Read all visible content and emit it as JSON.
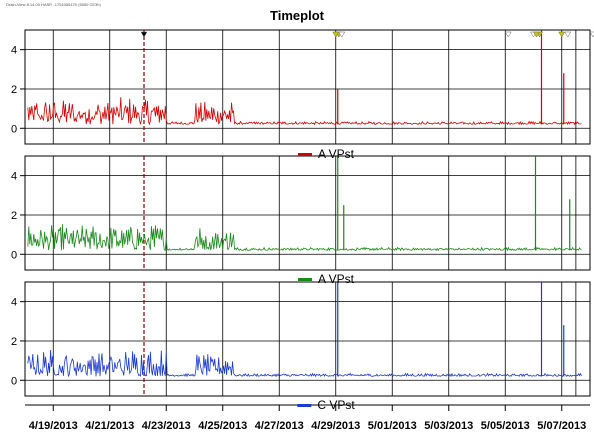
{
  "header": {
    "info_text": "Drain-View 8.14.00 HASP...1751055170 (5550 CE3h)"
  },
  "chart_data": {
    "type": "line",
    "title": "Timeplot",
    "x_ticks": [
      "4/19/2013",
      "4/21/2013",
      "4/23/2013",
      "4/25/2013",
      "4/27/2013",
      "4/29/2013",
      "5/01/2013",
      "5/03/2013",
      "5/05/2013",
      "5/07/2013"
    ],
    "x_range": [
      "4/18/2013",
      "5/08/2013"
    ],
    "y_ticks": [
      0,
      2,
      4
    ],
    "ylim": [
      -0.8,
      5
    ],
    "grid": true,
    "marker_line_date": "4/22/2013",
    "event_markers": [
      "4/22/2013",
      "4/29/2013",
      "4/29/2013",
      "4/29/2013",
      "5/05/2013",
      "5/06/2013",
      "5/06/2013",
      "5/06/2013",
      "5/07/2013",
      "5/07/2013",
      "5/08/2013"
    ],
    "series": [
      {
        "name": "A VPst",
        "color": "#d40000",
        "peaks": [
          {
            "date": "4/29/2013",
            "value": 2.0
          },
          {
            "date": "5/06/2013",
            "value": 5.0
          },
          {
            "date": "5/07/2013",
            "value": 2.8
          }
        ]
      },
      {
        "name": "A VPst",
        "color": "#1a8a1a",
        "peaks": [
          {
            "date": "4/29/2013",
            "value": 5.0
          },
          {
            "date": "4/29/2013",
            "value": 2.5
          },
          {
            "date": "5/06/2013",
            "value": 5.0
          },
          {
            "date": "5/07/2013",
            "value": 2.8
          }
        ]
      },
      {
        "name": "C VPst",
        "color": "#1a3ad4",
        "peaks": [
          {
            "date": "4/29/2013",
            "value": 5.0
          },
          {
            "date": "5/06/2013",
            "value": 5.0
          },
          {
            "date": "5/07/2013",
            "value": 2.8
          }
        ]
      }
    ]
  }
}
